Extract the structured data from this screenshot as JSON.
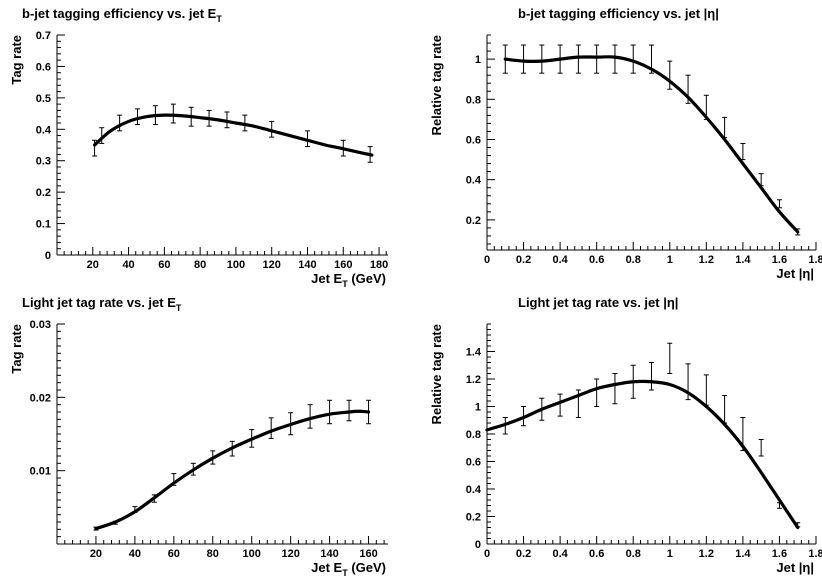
{
  "chart_data": [
    {
      "id": "p1",
      "type": "line",
      "title": "b-jet tagging efficiency vs. jet E",
      "title_sub": "T",
      "ylabel": "Tag rate",
      "xlabel": "Jet E",
      "xlabel_sub": "T",
      "xlabel_suffix": " (GeV)",
      "xlim": [
        0,
        185
      ],
      "ylim": [
        0,
        0.7
      ],
      "xticks": [
        20,
        40,
        60,
        80,
        100,
        120,
        140,
        160,
        180
      ],
      "yticks": [
        0.1,
        0.2,
        0.3,
        0.4,
        0.5,
        0.6,
        0.7
      ],
      "ytick_labels": [
        "0.1",
        "0.2",
        "0.3",
        "0.4",
        "0.5",
        "0.6",
        "0.7"
      ],
      "y_zero_label": "0",
      "points": {
        "x": [
          21,
          25,
          35,
          45,
          55,
          65,
          75,
          85,
          95,
          105,
          120,
          140,
          160,
          175
        ],
        "y": [
          0.34,
          0.38,
          0.42,
          0.44,
          0.445,
          0.45,
          0.44,
          0.435,
          0.43,
          0.42,
          0.4,
          0.37,
          0.34,
          0.32
        ],
        "err": [
          0.025,
          0.025,
          0.025,
          0.025,
          0.03,
          0.03,
          0.03,
          0.025,
          0.025,
          0.025,
          0.025,
          0.025,
          0.025,
          0.025
        ]
      },
      "fit": {
        "x": [
          21,
          30,
          40,
          50,
          60,
          70,
          80,
          90,
          100,
          110,
          120,
          130,
          140,
          150,
          160,
          170,
          176
        ],
        "y": [
          0.35,
          0.395,
          0.425,
          0.44,
          0.445,
          0.443,
          0.437,
          0.43,
          0.42,
          0.41,
          0.395,
          0.38,
          0.365,
          0.35,
          0.338,
          0.325,
          0.318
        ]
      }
    },
    {
      "id": "p2",
      "type": "line",
      "title": "b-jet tagging efficiency vs. jet |η|",
      "ylabel": "Relative tag rate",
      "xlabel": "Jet |η|",
      "xlim": [
        0,
        1.8
      ],
      "ylim": [
        0.05,
        1.12
      ],
      "xticks": [
        0,
        0.2,
        0.4,
        0.6,
        0.8,
        1,
        1.2,
        1.4,
        1.6,
        1.8
      ],
      "xtick_labels": [
        "0",
        "0.2",
        "0.4",
        "0.6",
        "0.8",
        "1",
        "1.2",
        "1.4",
        "1.6",
        "1.8"
      ],
      "yticks": [
        0.2,
        0.4,
        0.6,
        0.8,
        1
      ],
      "ytick_labels": [
        "0.2",
        "0.4",
        "0.6",
        "0.8",
        "1"
      ],
      "points": {
        "x": [
          0.1,
          0.2,
          0.3,
          0.4,
          0.5,
          0.6,
          0.7,
          0.8,
          0.9,
          1.0,
          1.1,
          1.2,
          1.3,
          1.4,
          1.5,
          1.6,
          1.7
        ],
        "y": [
          1.0,
          1.0,
          1.0,
          1.0,
          1.0,
          1.0,
          1.0,
          1.0,
          1.0,
          0.92,
          0.85,
          0.76,
          0.66,
          0.54,
          0.4,
          0.28,
          0.14
        ],
        "err": [
          0.07,
          0.07,
          0.07,
          0.07,
          0.07,
          0.07,
          0.07,
          0.07,
          0.07,
          0.07,
          0.07,
          0.06,
          0.05,
          0.04,
          0.03,
          0.02,
          0.015
        ]
      },
      "fit": {
        "x": [
          0.1,
          0.2,
          0.3,
          0.4,
          0.5,
          0.6,
          0.7,
          0.8,
          0.9,
          1.0,
          1.1,
          1.2,
          1.3,
          1.4,
          1.5,
          1.6,
          1.7
        ],
        "y": [
          1.0,
          0.99,
          0.99,
          1.0,
          1.01,
          1.01,
          1.01,
          0.99,
          0.95,
          0.89,
          0.81,
          0.71,
          0.6,
          0.48,
          0.36,
          0.24,
          0.14
        ]
      }
    },
    {
      "id": "p3",
      "type": "line",
      "title": "Light jet tag rate vs. jet E",
      "title_sub": "T",
      "ylabel": "Tag rate",
      "xlabel": "Jet E",
      "xlabel_sub": "T",
      "xlabel_suffix": " (GeV)",
      "xlim": [
        0,
        170
      ],
      "ylim": [
        0,
        0.03
      ],
      "xticks": [
        20,
        40,
        60,
        80,
        100,
        120,
        140,
        160
      ],
      "yticks": [
        0.01,
        0.02,
        0.03
      ],
      "ytick_labels": [
        "0.01",
        "0.02",
        "0.03"
      ],
      "points": {
        "x": [
          20,
          30,
          40,
          50,
          60,
          70,
          80,
          90,
          100,
          110,
          120,
          130,
          140,
          150,
          160
        ],
        "y": [
          0.0021,
          0.0029,
          0.0047,
          0.0062,
          0.0088,
          0.0102,
          0.0118,
          0.013,
          0.0144,
          0.0158,
          0.0164,
          0.0174,
          0.018,
          0.0182,
          0.018
        ],
        "err": [
          0.0002,
          0.0002,
          0.0004,
          0.0005,
          0.0008,
          0.0008,
          0.0009,
          0.001,
          0.0012,
          0.0014,
          0.0015,
          0.0016,
          0.0016,
          0.0014,
          0.0016
        ]
      },
      "fit": {
        "x": [
          20,
          30,
          40,
          50,
          60,
          70,
          80,
          90,
          100,
          110,
          120,
          130,
          140,
          150,
          155,
          160
        ],
        "y": [
          0.0021,
          0.003,
          0.0044,
          0.0063,
          0.0083,
          0.0101,
          0.0117,
          0.0131,
          0.0143,
          0.0154,
          0.0163,
          0.0171,
          0.0177,
          0.018,
          0.0181,
          0.018
        ]
      }
    },
    {
      "id": "p4",
      "type": "line",
      "title": "Light jet tag rate vs. jet |η|",
      "ylabel": "Relative tag rate",
      "xlabel": "Jet |η|",
      "xlim": [
        0,
        1.8
      ],
      "ylim": [
        0,
        1.6
      ],
      "xticks": [
        0,
        0.2,
        0.4,
        0.6,
        0.8,
        1,
        1.2,
        1.4,
        1.6,
        1.8
      ],
      "xtick_labels": [
        "0",
        "0.2",
        "0.4",
        "0.6",
        "0.8",
        "1",
        "1.2",
        "1.4",
        "1.6",
        "1.8"
      ],
      "yticks": [
        0,
        0.2,
        0.4,
        0.6,
        0.8,
        1,
        1.2,
        1.4
      ],
      "ytick_labels": [
        "0",
        "0.2",
        "0.4",
        "0.6",
        "0.8",
        "1",
        "1.2",
        "1.4"
      ],
      "points": {
        "x": [
          0.1,
          0.2,
          0.3,
          0.4,
          0.5,
          0.6,
          0.7,
          0.8,
          0.9,
          1.0,
          1.1,
          1.2,
          1.3,
          1.4,
          1.5,
          1.6,
          1.7
        ],
        "y": [
          0.86,
          0.93,
          0.98,
          1.01,
          1.02,
          1.1,
          1.13,
          1.18,
          1.22,
          1.35,
          1.18,
          1.12,
          0.98,
          0.8,
          0.7,
          0.28,
          0.14
        ],
        "err": [
          0.06,
          0.07,
          0.08,
          0.08,
          0.1,
          0.1,
          0.11,
          0.12,
          0.1,
          0.11,
          0.13,
          0.11,
          0.1,
          0.12,
          0.06,
          0.02,
          0.015
        ]
      },
      "fit": {
        "x": [
          0,
          0.1,
          0.2,
          0.3,
          0.4,
          0.5,
          0.6,
          0.7,
          0.8,
          0.9,
          1.0,
          1.1,
          1.2,
          1.3,
          1.4,
          1.5,
          1.6,
          1.7
        ],
        "y": [
          0.83,
          0.87,
          0.92,
          0.98,
          1.03,
          1.08,
          1.13,
          1.16,
          1.18,
          1.18,
          1.16,
          1.1,
          1.0,
          0.87,
          0.71,
          0.52,
          0.32,
          0.12
        ]
      }
    }
  ]
}
